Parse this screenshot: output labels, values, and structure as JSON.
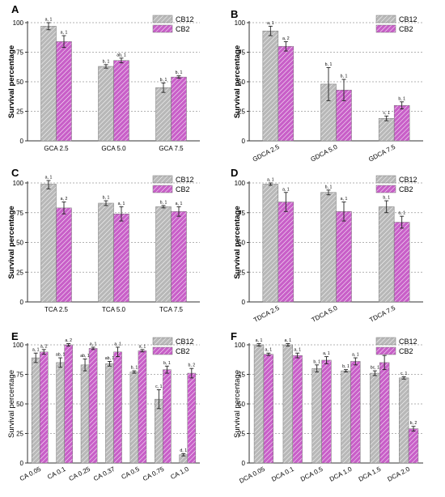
{
  "figure": {
    "colors": {
      "CB12": "#b8b8b8",
      "CB2": "#c85fc8",
      "axis": "#333333",
      "grid": "#9a9a9a",
      "hatch": "#ffffff"
    }
  },
  "chart_data": [
    {
      "panel": "A",
      "type": "bar",
      "ylabel": "Survival percentage",
      "ylim": [
        0,
        100
      ],
      "yticks": [
        "0",
        "25",
        "50",
        "75",
        "100"
      ],
      "xtick_rotation": 0,
      "grid": true,
      "legend": "top-right",
      "categories": [
        "GCA 2.5",
        "GCA 5.0",
        "GCA 7.5"
      ],
      "series": [
        {
          "name": "CB12",
          "values": [
            97,
            63,
            45
          ],
          "errors": [
            3,
            1.5,
            4
          ],
          "labels": [
            "a, 1",
            "b, 1",
            "b, 1"
          ]
        },
        {
          "name": "CB2",
          "values": [
            84,
            68,
            54
          ],
          "errors": [
            5,
            2,
            1
          ],
          "labels": [
            "a, 1",
            "ab, 1",
            "b, 1"
          ]
        }
      ]
    },
    {
      "panel": "B",
      "type": "bar",
      "ylabel": "Survival percentage",
      "ylim": [
        0,
        100
      ],
      "yticks": [
        "0",
        "25",
        "50",
        "75",
        "100"
      ],
      "xtick_rotation": -28,
      "grid": true,
      "legend": "top-right",
      "categories": [
        "GDCA 2.5",
        "GDCA 5.0",
        "GDCA 7.5"
      ],
      "series": [
        {
          "name": "CB12",
          "values": [
            93,
            48,
            19
          ],
          "errors": [
            4,
            14,
            2
          ],
          "labels": [
            "a, 1",
            "b, 1",
            "c, 1"
          ]
        },
        {
          "name": "CB2",
          "values": [
            80,
            43,
            30
          ],
          "errors": [
            4,
            9,
            3
          ],
          "labels": [
            "a, 2",
            "b, 1",
            "b, 1"
          ]
        }
      ]
    },
    {
      "panel": "C",
      "type": "bar",
      "ylabel": "Survival percentage",
      "ylim": [
        0,
        100
      ],
      "yticks": [
        "0",
        "25",
        "50",
        "75",
        "100"
      ],
      "xtick_rotation": 0,
      "grid": true,
      "legend": "top-right",
      "categories": [
        "TCA 2.5",
        "TCA 5.0",
        "TCA 7.5"
      ],
      "series": [
        {
          "name": "CB12",
          "values": [
            99,
            83,
            80
          ],
          "errors": [
            4,
            2,
            1
          ],
          "labels": [
            "a, 1",
            "b, 1",
            "b, 1"
          ]
        },
        {
          "name": "CB2",
          "values": [
            79,
            74,
            76
          ],
          "errors": [
            5,
            6,
            4
          ],
          "labels": [
            "a, 2",
            "a, 1",
            "a, 1"
          ]
        }
      ]
    },
    {
      "panel": "D",
      "type": "bar",
      "ylabel": "Survival percentage",
      "ylim": [
        0,
        100
      ],
      "yticks": [
        "0",
        "25",
        "50",
        "75",
        "100"
      ],
      "xtick_rotation": -28,
      "grid": true,
      "legend": "top-right",
      "categories": [
        "TDCA 2.5",
        "TDCA 5.0",
        "TDCA 7.5"
      ],
      "series": [
        {
          "name": "CB12",
          "values": [
            99,
            92,
            80
          ],
          "errors": [
            1,
            2,
            5
          ],
          "labels": [
            "a, 1",
            "b, 1",
            "b, 1"
          ]
        },
        {
          "name": "CB2",
          "values": [
            84,
            76,
            67
          ],
          "errors": [
            8,
            8,
            5
          ],
          "labels": [
            "a, 1",
            "a, 1",
            "a, 1"
          ]
        }
      ]
    },
    {
      "panel": "E",
      "type": "bar",
      "ylabel": "Survival percentage",
      "ylim": [
        0,
        100
      ],
      "yticks": [
        "0",
        "25",
        "50",
        "75",
        "100"
      ],
      "xtick_rotation": -28,
      "grid": true,
      "legend": "top-right",
      "categories": [
        "CA 0.05",
        "CA 0.1",
        "CA 0.25",
        "CA 0.37",
        "CA 0.5",
        "CA 0.75",
        "CA 1.0"
      ],
      "series": [
        {
          "name": "CB12",
          "values": [
            89,
            85,
            83,
            84,
            77,
            54,
            7
          ],
          "errors": [
            4,
            4,
            5,
            2,
            1,
            8,
            1
          ],
          "labels": [
            "a, 1",
            "ab, 1",
            "ab, 1",
            "ab, 1",
            "b, 1",
            "c, 1",
            "d, 1"
          ]
        },
        {
          "name": "CB2",
          "values": [
            94,
            100,
            97,
            94,
            95,
            79,
            76
          ],
          "errors": [
            2,
            1,
            1,
            4,
            1,
            3,
            4
          ],
          "labels": [
            "a, 2",
            "a, 2",
            "a, 1",
            "a, 1",
            "a, 1",
            "b, 1",
            "b, 2"
          ]
        }
      ]
    },
    {
      "panel": "F",
      "type": "bar",
      "ylabel": "Survival percentage",
      "ylim": [
        0,
        100
      ],
      "yticks": [
        "0",
        "25",
        "50",
        "75",
        "100"
      ],
      "xtick_rotation": -28,
      "grid": true,
      "legend": "top-right",
      "categories": [
        "DCA 0.05",
        "DCA 0.1",
        "DCA 0.5",
        "DCA 1.0",
        "DCA 1.5",
        "DCA 2.0"
      ],
      "series": [
        {
          "name": "CB12",
          "values": [
            100,
            100,
            80,
            78,
            76,
            72
          ],
          "errors": [
            1,
            1,
            3,
            1,
            2,
            1
          ],
          "labels": [
            "a, 1",
            "a, 1",
            "b, 1",
            "b, 1",
            "bc, 1",
            "c, 1"
          ]
        },
        {
          "name": "CB2",
          "values": [
            92,
            91,
            87,
            86,
            85,
            29
          ],
          "errors": [
            1,
            2,
            3,
            3,
            6,
            2
          ],
          "labels": [
            "a, 1",
            "a, 1",
            "a, 1",
            "a, 1",
            "a, 1",
            "b, 2"
          ]
        }
      ]
    }
  ]
}
